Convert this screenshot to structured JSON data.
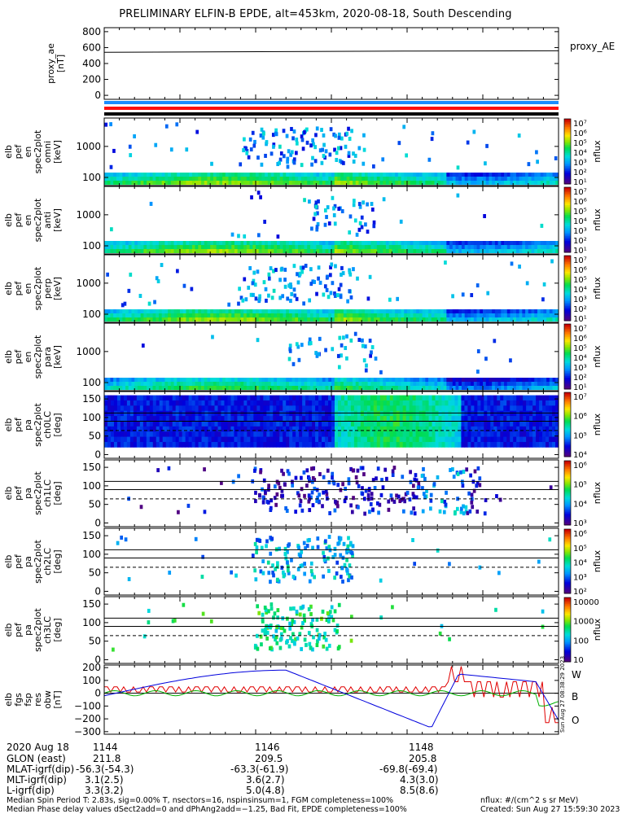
{
  "title": "PRELIMINARY ELFIN-B EPDE, alt=453km, 2020-08-18, South Descending",
  "chart_data": [
    {
      "type": "line",
      "panel": "proxy_ae",
      "ylabel": [
        "proxy_ae",
        "[nT]"
      ],
      "legend": "proxy_AE",
      "ylim": [
        -50,
        850
      ],
      "yticks": [
        "800",
        "600",
        "400",
        "200",
        "0"
      ],
      "series": [
        {
          "name": "proxy_AE",
          "x": [
            0,
            0.66,
            1.0
          ],
          "y": [
            540,
            555,
            560
          ]
        }
      ]
    },
    {
      "type": "heatmap",
      "panel": "omni",
      "ylabel": [
        "elb",
        "pef",
        "en",
        "spec2plot",
        "omni",
        "[keV]"
      ],
      "yticks": [
        "1000",
        "100"
      ],
      "colorbar": {
        "label": "nflux",
        "ticks": [
          "10⁷",
          "10⁶",
          "10⁵",
          "10⁴",
          "10³",
          "10²",
          "10¹"
        ]
      }
    },
    {
      "type": "heatmap",
      "panel": "anti",
      "ylabel": [
        "elb",
        "pef",
        "en",
        "spec2plot",
        "anti",
        "[keV]"
      ],
      "yticks": [
        "1000",
        "100"
      ],
      "colorbar": {
        "label": "nflux",
        "ticks": [
          "10⁷",
          "10⁶",
          "10⁵",
          "10⁴",
          "10³",
          "10²",
          "10¹"
        ]
      }
    },
    {
      "type": "heatmap",
      "panel": "perp",
      "ylabel": [
        "elb",
        "pef",
        "en",
        "spec2plot",
        "perp",
        "[keV]"
      ],
      "yticks": [
        "1000",
        "100"
      ],
      "colorbar": {
        "label": "nflux",
        "ticks": [
          "10⁷",
          "10⁶",
          "10⁵",
          "10⁴",
          "10³",
          "10²",
          "10¹"
        ]
      }
    },
    {
      "type": "heatmap",
      "panel": "para",
      "ylabel": [
        "elb",
        "pef",
        "en",
        "spec2plot",
        "para",
        "[keV]"
      ],
      "yticks": [
        "1000",
        "100"
      ],
      "colorbar": {
        "label": "nflux",
        "ticks": [
          "10⁷",
          "10⁶",
          "10⁵",
          "10⁴",
          "10³",
          "10²",
          "10¹"
        ]
      }
    },
    {
      "type": "heatmap",
      "panel": "ch0LC",
      "ylabel": [
        "elb",
        "pef",
        "pa",
        "spec2plot",
        "ch0LC",
        "[deg]"
      ],
      "yticks": [
        "150",
        "100",
        "50",
        "0"
      ],
      "colorbar": {
        "label": "nflux",
        "ticks": [
          "10⁷",
          "10⁶",
          "10⁵",
          "10⁴"
        ]
      }
    },
    {
      "type": "heatmap",
      "panel": "ch1LC",
      "ylabel": [
        "elb",
        "pef",
        "pa",
        "spec2plot",
        "ch1LC",
        "[deg]"
      ],
      "yticks": [
        "150",
        "100",
        "50",
        "0"
      ],
      "colorbar": {
        "label": "nflux",
        "ticks": [
          "10⁶",
          "10⁵",
          "10⁴",
          "10³"
        ]
      }
    },
    {
      "type": "heatmap",
      "panel": "ch2LC",
      "ylabel": [
        "elb",
        "pef",
        "pa",
        "spec2plot",
        "ch2LC",
        "[deg]"
      ],
      "yticks": [
        "150",
        "100",
        "50",
        "0"
      ],
      "colorbar": {
        "label": "nflux",
        "ticks": [
          "10⁶",
          "10⁵",
          "10⁴",
          "10³",
          "10²"
        ]
      }
    },
    {
      "type": "heatmap",
      "panel": "ch3LC",
      "ylabel": [
        "elb",
        "pef",
        "pa",
        "spec2plot",
        "ch3LC",
        "[deg]"
      ],
      "yticks": [
        "150",
        "100",
        "50",
        "0"
      ],
      "colorbar": {
        "label": "nflux",
        "ticks": [
          "10000",
          "1000",
          "100",
          "10"
        ]
      }
    },
    {
      "type": "line",
      "panel": "fgs",
      "ylabel": [
        "elb",
        "fgs",
        "fsp",
        "res",
        "obw",
        "[nT]"
      ],
      "ylim": [
        -320,
        220
      ],
      "yticks": [
        "200",
        "100",
        "0",
        "−100",
        "−200",
        "−300"
      ],
      "legend": [
        "W",
        "B",
        "O"
      ],
      "colors": {
        "W": "#e00000",
        "B": "#00b000",
        "O": "#0000dd"
      }
    }
  ],
  "side_stamp": "Sun Aug 27 08:38:29 2023",
  "time_axis": {
    "date": "2020 Aug 18",
    "ticks": [
      "1144",
      "1146",
      "1148"
    ],
    "rows": [
      {
        "label": "GLON (east)",
        "values": [
          "211.8",
          "209.5",
          "205.8"
        ]
      },
      {
        "label": "MLAT-igrf(dip)",
        "values": [
          "-56.3(-54.3)",
          "-63.3(-61.9)",
          "-69.8(-69.4)"
        ]
      },
      {
        "label": "MLT-igrf(dip)",
        "values": [
          "3.1(2.5)",
          "3.6(2.7)",
          "4.3(3.0)"
        ]
      },
      {
        "label": "L-igrf(dip)",
        "values": [
          "3.3(3.2)",
          "5.0(4.8)",
          "8.5(8.6)"
        ]
      }
    ]
  },
  "footer": {
    "line1": "Median Spin Period T: 2.83s, sig=0.00% T, nsectors=16, nspinsinsum=1, FGM completeness=100%",
    "line2": "Median Phase delay values dSect2add=0 and dPhAng2add=−1.25, Bad Fit, EPDE completeness=100%",
    "units": "nflux: #/(cm^2 s sr MeV)",
    "created": "Created: Sun Aug 27 15:59:30 2023"
  }
}
